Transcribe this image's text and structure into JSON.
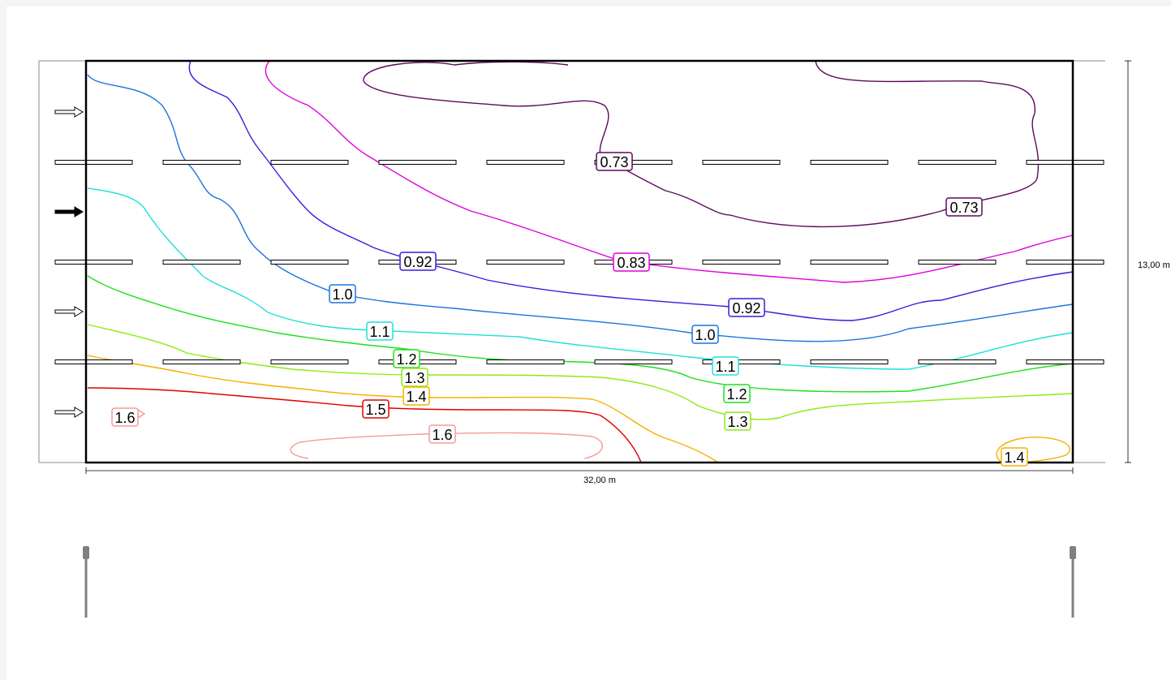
{
  "dimensions": {
    "length_label": "32,00 m",
    "width_label": "13,00 m"
  },
  "contour_labels": [
    {
      "text": "0.73",
      "color": "#5c0a5c"
    },
    {
      "text": "0.73",
      "color": "#5c0a5c"
    },
    {
      "text": "0.83",
      "color": "#dd00dd"
    },
    {
      "text": "0.92",
      "color": "#3a1adc"
    },
    {
      "text": "0.92",
      "color": "#3a1adc"
    },
    {
      "text": "1.0",
      "color": "#1873e0"
    },
    {
      "text": "1.0",
      "color": "#1873e0"
    },
    {
      "text": "1.1",
      "color": "#20e0d8"
    },
    {
      "text": "1.1",
      "color": "#20e0d8"
    },
    {
      "text": "1.2",
      "color": "#1ee01e"
    },
    {
      "text": "1.2",
      "color": "#1ee01e"
    },
    {
      "text": "1.3",
      "color": "#8aec10"
    },
    {
      "text": "1.3",
      "color": "#8aec10"
    },
    {
      "text": "1.4",
      "color": "#f5b000"
    },
    {
      "text": "1.4",
      "color": "#f5b000"
    },
    {
      "text": "1.5",
      "color": "#e00000"
    },
    {
      "text": "1.6",
      "color": "#f59a9a"
    },
    {
      "text": "1.6",
      "color": "#f59a9a"
    }
  ],
  "contour_colors": {
    "c073": "#5c0a5c",
    "c083": "#dd00dd",
    "c092": "#3a1adc",
    "c100": "#1873e0",
    "c110": "#20e0d8",
    "c120": "#1ee01e",
    "c130": "#8aec10",
    "c140": "#f5b000",
    "c150": "#e00000",
    "c160": "#f59a9a"
  },
  "icons": {
    "traffic_arrow_outline": "right-arrow-outline-icon",
    "traffic_arrow_filled": "right-arrow-filled-icon",
    "luminaire": "street-light-pole-icon"
  }
}
